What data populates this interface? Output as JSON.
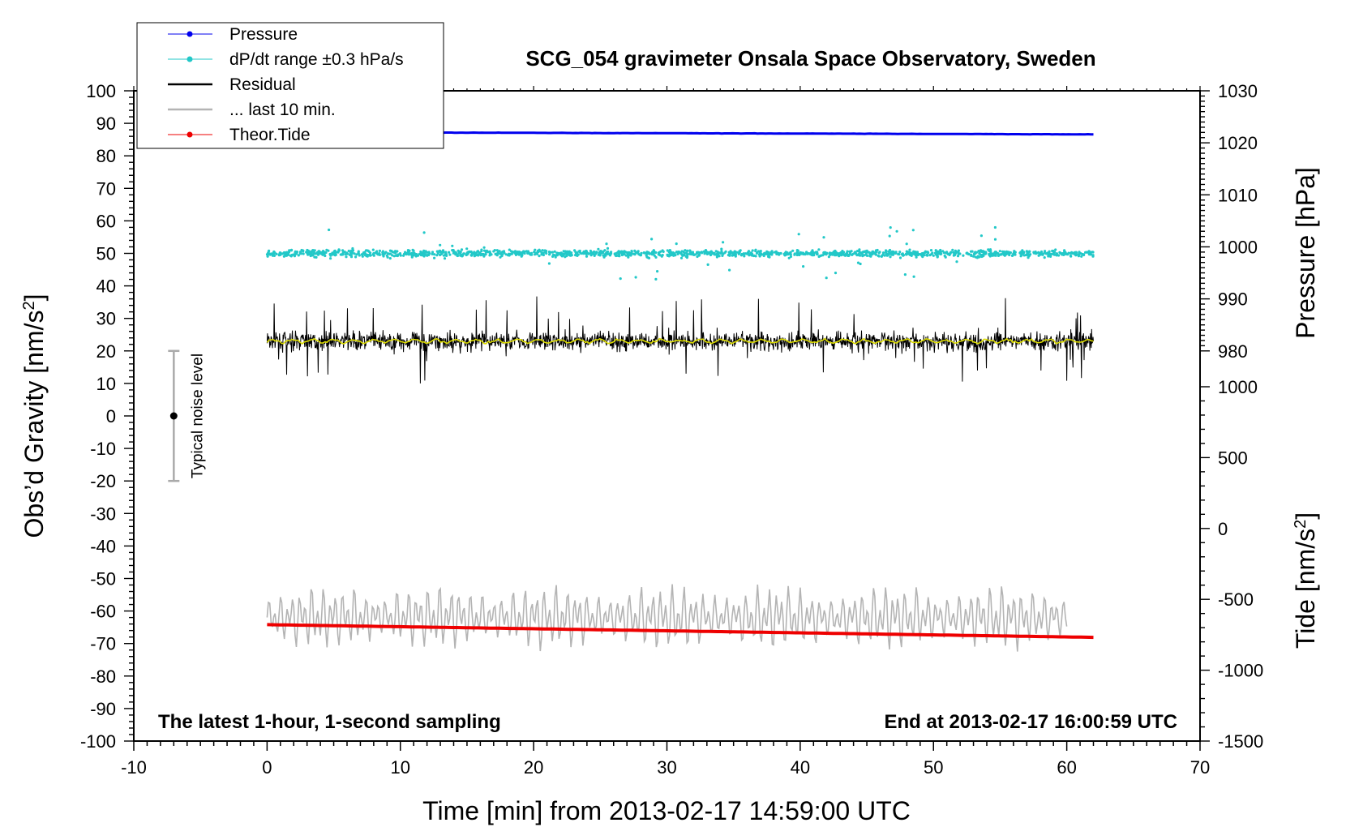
{
  "chart_data": {
    "type": "line",
    "title": "SCG_054 gravimeter Onsala Space Observatory, Sweden",
    "xlabel": "Time [min] from 2013-02-17 14:59:00 UTC",
    "ylabel_left": "Obs’d Gravity [nm/s",
    "ylabel_left_unit_exponent": "2",
    "ylabel_left_close": "]",
    "ylabel_right_pressure": "Pressure [hPa]",
    "ylabel_right_tide": "Tide [nm/s",
    "ylabel_right_tide_exponent": "2",
    "ylabel_right_tide_close": "]",
    "xlim": [
      -10,
      70
    ],
    "ylim_left": [
      -100,
      100
    ],
    "pressure_axis": {
      "range": [
        980,
        1030
      ],
      "ticks": [
        980,
        990,
        1000,
        1010,
        1020,
        1030
      ]
    },
    "tide_axis": {
      "range": [
        -1500,
        1000
      ],
      "ticks": [
        -1500,
        -1000,
        -500,
        0,
        500,
        1000
      ]
    },
    "x_ticks": [
      -10,
      0,
      10,
      20,
      30,
      40,
      50,
      60,
      70
    ],
    "x_tick_labels": [
      "-10",
      "0",
      "10",
      "20",
      "30",
      "40",
      "50",
      "60",
      "70"
    ],
    "y_ticks": [
      -100,
      -90,
      -80,
      -70,
      -60,
      -50,
      -40,
      -30,
      -20,
      -10,
      0,
      10,
      20,
      30,
      40,
      50,
      60,
      70,
      80,
      90,
      100
    ],
    "y_tick_labels": [
      "-100",
      "-90",
      "-80",
      "-70",
      "-60",
      "-50",
      "-40",
      "-30",
      "-20",
      "-10",
      "0",
      "10",
      "20",
      "30",
      "40",
      "50",
      "60",
      "70",
      "80",
      "90",
      "100"
    ],
    "pressure_tick_labels": [
      "980",
      "990",
      "1000",
      "1010",
      "1020",
      "1030"
    ],
    "tide_tick_labels": [
      "-1500",
      "-1000",
      "-500",
      "0",
      "500",
      "1000"
    ],
    "legend": [
      {
        "name": "Pressure",
        "color": "#0000ee",
        "marker": true
      },
      {
        "name": "dP/dt range ±0.3 hPa/s",
        "color": "#22c8c8",
        "marker": true
      },
      {
        "name": "Residual",
        "color": "#000000",
        "marker": false
      },
      {
        "name": "... last 10 min.",
        "color": "#b4b4b4",
        "marker": false
      },
      {
        "name": "Theor.Tide",
        "color": "#ee0000",
        "marker": true
      }
    ],
    "series": [
      {
        "name": "Pressure",
        "color": "#0000ee",
        "x_range": [
          0,
          62
        ],
        "y_start": 87.3,
        "y_end": 86.6
      },
      {
        "name": "dP/dt range ±0.3 hPa/s",
        "color": "#22c8c8",
        "x_range": [
          0,
          62
        ],
        "center": 50,
        "spread": 2,
        "outlier_max": 8
      },
      {
        "name": "Residual",
        "color": "#000000",
        "x_range": [
          0,
          62
        ],
        "center": 23,
        "amplitude_max": 14
      },
      {
        "name": "Residual smoothed",
        "color": "#dddd00",
        "x_range": [
          0,
          62
        ],
        "center": 23
      },
      {
        "name": "... last 10 min.",
        "color": "#b4b4b4",
        "x_range": [
          0,
          60
        ],
        "center": -62,
        "amplitude": 9
      },
      {
        "name": "Theor.Tide",
        "color": "#ee0000",
        "x_range": [
          0,
          62
        ],
        "y_start": -64.2,
        "y_end": -68.1
      }
    ],
    "noise_level": {
      "label": "Typical noise level",
      "x": -7,
      "y_center": 0,
      "y_min": -20,
      "y_max": 20
    },
    "annotations": {
      "left": "The latest 1-hour, 1-second sampling",
      "right": "End at 2013-02-17 16:00:59 UTC"
    }
  }
}
